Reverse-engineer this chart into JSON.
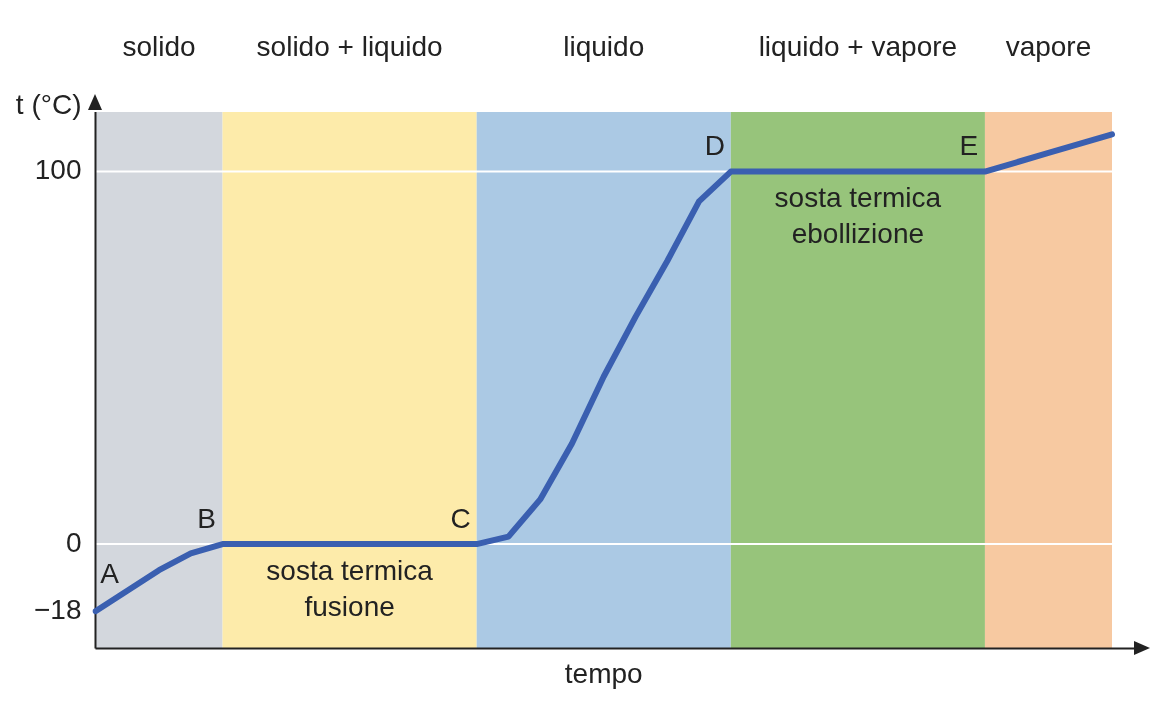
{
  "chart_data": {
    "type": "line",
    "xlabel": "tempo",
    "ylabel": "t (°C)",
    "categories": [
      null,
      null,
      null,
      null,
      null,
      null,
      null,
      null,
      null,
      null,
      null,
      null,
      null,
      null,
      null,
      null,
      null,
      null,
      null,
      null,
      null,
      null,
      null,
      null,
      null,
      null,
      null,
      null,
      null,
      null,
      null,
      null,
      null
    ],
    "series": [
      {
        "color": "#3a5fb0",
        "values": [
          -18,
          -12.5,
          -7,
          -2.5,
          0,
          0,
          0,
          0,
          0,
          0,
          0,
          0,
          0,
          2,
          12,
          27,
          45,
          61,
          76,
          92,
          100,
          100,
          100,
          100,
          100,
          100,
          100,
          100,
          100,
          102.5,
          105,
          107.5,
          110
        ],
        "value_labels": [
          "A",
          null,
          null,
          null,
          "B",
          null,
          null,
          null,
          "sosta termica fusione",
          null,
          null,
          null,
          "C",
          null,
          null,
          null,
          null,
          null,
          null,
          null,
          "D",
          null,
          null,
          null,
          "sosta termica ebollizione",
          null,
          null,
          null,
          "E",
          null,
          null,
          null,
          null
        ]
      }
    ],
    "ylim": [
      -28,
      116
    ],
    "yticks": [
      -18,
      0,
      100
    ],
    "tick_labels": "y",
    "grid": false,
    "legend": false,
    "marker": "none",
    "line_style": "solid",
    "ref_lines": [
      {
        "axis": "y",
        "value": 0,
        "color": "#ffffff"
      },
      {
        "axis": "y",
        "value": 100,
        "color": "#ffffff"
      }
    ],
    "annotations": [
      "solido",
      "solido + liquido",
      "liquido",
      "liquido + vapore",
      "vapore"
    ]
  }
}
